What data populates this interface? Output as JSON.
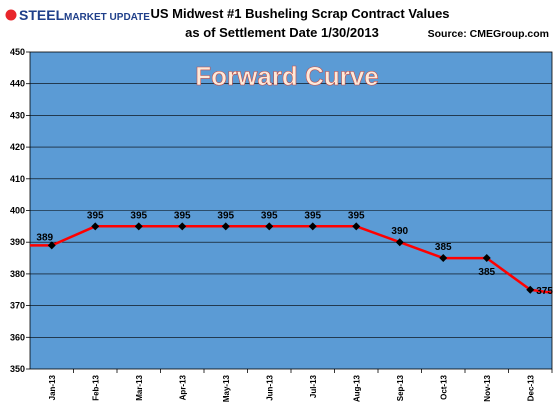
{
  "logo": {
    "word_a": "STEEL",
    "word_b": "MARKET UPDATE",
    "accent_color": "#e8262b",
    "brand_color": "#1f3f8a"
  },
  "source_text": "Source: CMEGroup.com",
  "chart_data": {
    "type": "line",
    "title": "US Midwest #1 Busheling Scrap Contract Values",
    "subtitle": "as of Settlement Date 1/30/2013",
    "annotation": "Forward Curve",
    "xlabel": "",
    "ylabel": "",
    "categories": [
      "Jan-13",
      "Feb-13",
      "Mar-13",
      "Apr-13",
      "May-13",
      "Jun-13",
      "Jul-13",
      "Aug-13",
      "Sep-13",
      "Oct-13",
      "Nov-13",
      "Dec-13"
    ],
    "series": [
      {
        "values": [
          389,
          395,
          395,
          395,
          395,
          395,
          395,
          395,
          390,
          385,
          385,
          375
        ]
      }
    ],
    "data_labels": [
      "389",
      "395",
      "395",
      "395",
      "395",
      "395",
      "395",
      "395",
      "390",
      "385",
      "385",
      "375"
    ],
    "ylim": [
      350,
      450
    ],
    "yticks": [
      350,
      360,
      370,
      380,
      390,
      400,
      410,
      420,
      430,
      440,
      450
    ],
    "grid": true,
    "colors": {
      "plot_background": "#5b9bd5",
      "line": "#ff0000",
      "marker": "#000000",
      "grid": "#000000"
    }
  }
}
